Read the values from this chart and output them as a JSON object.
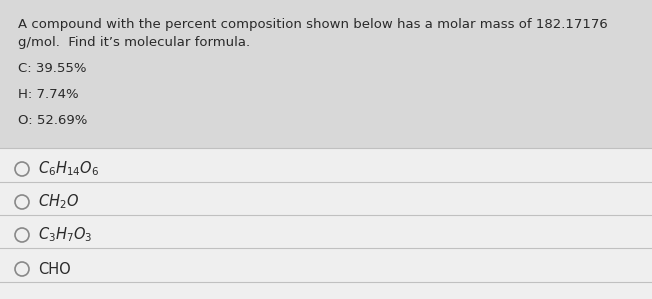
{
  "background_color": "#d8d8d8",
  "upper_bg": "#d8d8d8",
  "lower_bg": "#e8e8e8",
  "question_line1": "A compound with the percent composition shown below has a molar mass of 182.17176",
  "question_line2": "g/mol.  Find it’s molecular formula.",
  "composition": [
    "C: 39.55%",
    "H: 7.74%",
    "O: 52.69%"
  ],
  "options": [
    {
      "label": "$C_6H_{14}O_6$"
    },
    {
      "label": "$CH_2O$"
    },
    {
      "label": "$C_3H_7O_3$"
    },
    {
      "label": "CHO"
    }
  ],
  "text_color": "#2a2a2a",
  "option_text_color": "#2a2a2a",
  "question_fontsize": 9.5,
  "comp_fontsize": 9.5,
  "option_fontsize": 10.5,
  "divider_color": "#c0c0c0",
  "circle_color": "#888888"
}
